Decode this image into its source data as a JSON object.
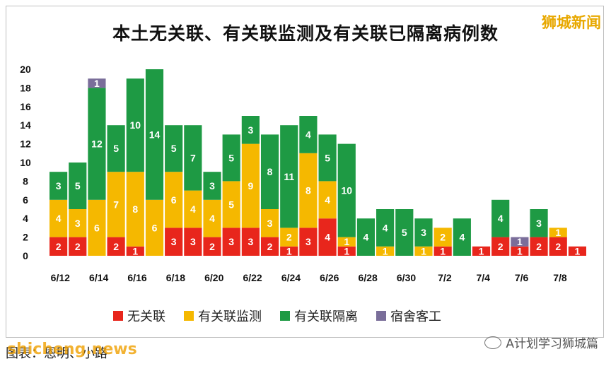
{
  "title": "本土无关联、有关联监测及有关联已隔离病例数",
  "logo_text": "狮城新闻",
  "watermark_right": "A计划学习狮城篇",
  "watermark_left": "shicheng.news",
  "caption": "图表：恩明、小路",
  "chart_data": {
    "type": "bar",
    "stacked": true,
    "title": "本土无关联、有关联监测及有关联已隔离病例数",
    "categories": [
      "6/12",
      "6/13",
      "6/14",
      "6/15",
      "6/16",
      "6/17",
      "6/18",
      "6/19",
      "6/20",
      "6/21",
      "6/22",
      "6/23",
      "6/24",
      "6/25",
      "6/26",
      "6/27",
      "6/28",
      "6/29",
      "6/30",
      "7/1",
      "7/2",
      "7/3",
      "7/4",
      "7/5",
      "7/6",
      "7/7",
      "7/8",
      "7/9"
    ],
    "tick_labels": [
      "6/12",
      "6/14",
      "6/16",
      "6/18",
      "6/20",
      "6/22",
      "6/24",
      "6/26",
      "6/28",
      "6/30",
      "7/2",
      "7/4",
      "7/6",
      "7/8"
    ],
    "ylim": [
      0,
      20
    ],
    "yticks": [
      0,
      2,
      4,
      6,
      8,
      10,
      12,
      14,
      16,
      18,
      20
    ],
    "grid": false,
    "legend_position": "bottom",
    "series": [
      {
        "name": "无关联",
        "color": "#e8261c",
        "values": [
          2,
          2,
          0,
          2,
          1,
          0,
          3,
          3,
          2,
          3,
          3,
          2,
          1,
          3,
          4,
          1,
          0,
          0,
          0,
          0,
          1,
          0,
          1,
          2,
          1,
          2,
          2,
          1
        ]
      },
      {
        "name": "有关联监测",
        "color": "#f5b800",
        "values": [
          4,
          3,
          6,
          7,
          8,
          6,
          6,
          4,
          4,
          5,
          9,
          3,
          2,
          8,
          4,
          1,
          0,
          1,
          0,
          1,
          2,
          0,
          0,
          0,
          0,
          0,
          1,
          0
        ]
      },
      {
        "name": "有关联隔离",
        "color": "#1e9a44",
        "values": [
          3,
          5,
          12,
          5,
          10,
          14,
          5,
          7,
          3,
          5,
          3,
          8,
          11,
          4,
          5,
          10,
          4,
          4,
          5,
          3,
          0,
          4,
          0,
          4,
          0,
          3,
          0,
          0
        ]
      },
      {
        "name": "宿舍客工",
        "color": "#7a6e9a",
        "values": [
          0,
          0,
          1,
          0,
          0,
          0,
          0,
          0,
          0,
          0,
          0,
          0,
          0,
          0,
          0,
          0,
          0,
          0,
          0,
          0,
          0,
          0,
          0,
          0,
          1,
          0,
          0,
          0
        ]
      }
    ]
  }
}
